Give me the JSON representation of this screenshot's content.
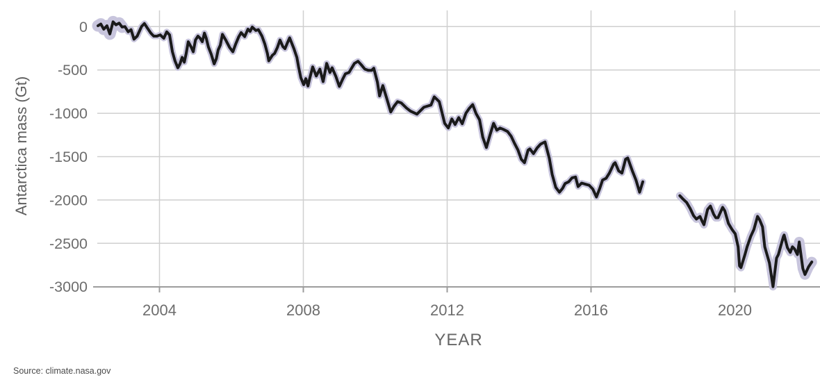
{
  "page": {
    "background": "#ffffff"
  },
  "source_note": "Source: climate.nasa.gov",
  "chart_data": {
    "type": "line",
    "title": "",
    "xlabel": "YEAR",
    "ylabel": "Antarctica mass (Gt)",
    "xlim": [
      2002.1,
      2022.3
    ],
    "ylim": [
      -3050,
      120
    ],
    "grid": true,
    "legend": "none",
    "x_ticks": {
      "values": [
        2004,
        2008,
        2012,
        2016,
        2020
      ],
      "labels": [
        "2004",
        "2008",
        "2012",
        "2016",
        "2020"
      ]
    },
    "y_ticks": {
      "values": [
        0,
        -500,
        -1000,
        -1500,
        -2000,
        -2500,
        -3000
      ],
      "labels": [
        "0",
        "-500",
        "-1000",
        "-1500",
        "-2000",
        "-2500",
        "-3000"
      ]
    },
    "line_color": "#1a1a1a",
    "band_color": "#c8c5dd",
    "grid_color": "#cfcfcf",
    "axis_color": "#9c9c9c",
    "tick_label_color": "#6d6d6d",
    "axis_label_color": "#5f5f5f",
    "series": [
      {
        "name": "mass-anomaly-segment-1",
        "points": [
          [
            2002.29,
            10
          ],
          [
            2002.37,
            30
          ],
          [
            2002.45,
            -30
          ],
          [
            2002.54,
            10
          ],
          [
            2002.62,
            -85
          ],
          [
            2002.71,
            55
          ],
          [
            2002.79,
            20
          ],
          [
            2002.88,
            40
          ],
          [
            2002.96,
            -5
          ],
          [
            2003.04,
            0
          ],
          [
            2003.13,
            -60
          ],
          [
            2003.21,
            -35
          ],
          [
            2003.29,
            -145
          ],
          [
            2003.38,
            -110
          ],
          [
            2003.5,
            0
          ],
          [
            2003.58,
            35
          ],
          [
            2003.67,
            -20
          ],
          [
            2003.76,
            -75
          ],
          [
            2003.84,
            -110
          ],
          [
            2003.93,
            -110
          ],
          [
            2004.02,
            -95
          ],
          [
            2004.12,
            -135
          ],
          [
            2004.2,
            -60
          ],
          [
            2004.28,
            -95
          ],
          [
            2004.36,
            -290
          ],
          [
            2004.43,
            -395
          ],
          [
            2004.51,
            -475
          ],
          [
            2004.57,
            -430
          ],
          [
            2004.63,
            -355
          ],
          [
            2004.69,
            -410
          ],
          [
            2004.74,
            -315
          ],
          [
            2004.8,
            -175
          ],
          [
            2004.88,
            -235
          ],
          [
            2004.94,
            -290
          ],
          [
            2005.0,
            -155
          ],
          [
            2005.07,
            -110
          ],
          [
            2005.13,
            -135
          ],
          [
            2005.19,
            -175
          ],
          [
            2005.25,
            -75
          ],
          [
            2005.3,
            -135
          ],
          [
            2005.36,
            -235
          ],
          [
            2005.44,
            -320
          ],
          [
            2005.52,
            -430
          ],
          [
            2005.58,
            -370
          ],
          [
            2005.63,
            -270
          ],
          [
            2005.69,
            -215
          ],
          [
            2005.75,
            -90
          ],
          [
            2005.85,
            -160
          ],
          [
            2005.95,
            -240
          ],
          [
            2006.04,
            -290
          ],
          [
            2006.12,
            -200
          ],
          [
            2006.2,
            -120
          ],
          [
            2006.27,
            -70
          ],
          [
            2006.37,
            -115
          ],
          [
            2006.46,
            -30
          ],
          [
            2006.52,
            -55
          ],
          [
            2006.58,
            -5
          ],
          [
            2006.68,
            -45
          ],
          [
            2006.75,
            -35
          ],
          [
            2006.85,
            -110
          ],
          [
            2006.93,
            -200
          ],
          [
            2007.0,
            -310
          ],
          [
            2007.04,
            -395
          ],
          [
            2007.14,
            -330
          ],
          [
            2007.2,
            -310
          ],
          [
            2007.28,
            -240
          ],
          [
            2007.35,
            -155
          ],
          [
            2007.43,
            -230
          ],
          [
            2007.49,
            -255
          ],
          [
            2007.56,
            -185
          ],
          [
            2007.62,
            -130
          ],
          [
            2007.74,
            -255
          ],
          [
            2007.82,
            -355
          ],
          [
            2007.87,
            -470
          ],
          [
            2007.93,
            -590
          ],
          [
            2008.01,
            -670
          ],
          [
            2008.07,
            -600
          ],
          [
            2008.13,
            -685
          ],
          [
            2008.17,
            -610
          ],
          [
            2008.26,
            -465
          ],
          [
            2008.36,
            -570
          ],
          [
            2008.46,
            -490
          ],
          [
            2008.55,
            -635
          ],
          [
            2008.65,
            -425
          ],
          [
            2008.74,
            -530
          ],
          [
            2008.8,
            -475
          ],
          [
            2008.9,
            -570
          ],
          [
            2009.0,
            -690
          ],
          [
            2009.09,
            -610
          ],
          [
            2009.17,
            -545
          ],
          [
            2009.27,
            -530
          ],
          [
            2009.42,
            -425
          ],
          [
            2009.52,
            -400
          ],
          [
            2009.61,
            -440
          ],
          [
            2009.71,
            -490
          ],
          [
            2009.81,
            -505
          ],
          [
            2009.9,
            -505
          ],
          [
            2009.96,
            -480
          ],
          [
            2010.06,
            -640
          ],
          [
            2010.12,
            -800
          ],
          [
            2010.21,
            -680
          ],
          [
            2010.32,
            -830
          ],
          [
            2010.43,
            -985
          ],
          [
            2010.52,
            -920
          ],
          [
            2010.62,
            -865
          ],
          [
            2010.72,
            -880
          ],
          [
            2010.87,
            -940
          ],
          [
            2010.98,
            -975
          ],
          [
            2011.16,
            -1010
          ],
          [
            2011.35,
            -930
          ],
          [
            2011.55,
            -905
          ],
          [
            2011.64,
            -810
          ],
          [
            2011.78,
            -865
          ],
          [
            2011.93,
            -1115
          ],
          [
            2012.03,
            -1170
          ],
          [
            2012.13,
            -1065
          ],
          [
            2012.22,
            -1130
          ],
          [
            2012.32,
            -1050
          ],
          [
            2012.42,
            -1120
          ],
          [
            2012.52,
            -1000
          ],
          [
            2012.61,
            -945
          ],
          [
            2012.71,
            -900
          ],
          [
            2012.8,
            -1000
          ],
          [
            2012.9,
            -1075
          ],
          [
            2012.99,
            -1275
          ],
          [
            2013.09,
            -1395
          ],
          [
            2013.19,
            -1250
          ],
          [
            2013.29,
            -1115
          ],
          [
            2013.38,
            -1195
          ],
          [
            2013.47,
            -1170
          ],
          [
            2013.56,
            -1185
          ],
          [
            2013.68,
            -1210
          ],
          [
            2013.78,
            -1265
          ],
          [
            2013.87,
            -1345
          ],
          [
            2013.97,
            -1425
          ],
          [
            2014.06,
            -1530
          ],
          [
            2014.15,
            -1570
          ],
          [
            2014.25,
            -1425
          ],
          [
            2014.3,
            -1410
          ],
          [
            2014.4,
            -1465
          ],
          [
            2014.5,
            -1400
          ],
          [
            2014.6,
            -1355
          ],
          [
            2014.72,
            -1330
          ],
          [
            2014.84,
            -1520
          ],
          [
            2014.92,
            -1705
          ],
          [
            2015.02,
            -1855
          ],
          [
            2015.12,
            -1910
          ],
          [
            2015.21,
            -1865
          ],
          [
            2015.28,
            -1810
          ],
          [
            2015.38,
            -1790
          ],
          [
            2015.47,
            -1745
          ],
          [
            2015.57,
            -1735
          ],
          [
            2015.64,
            -1845
          ],
          [
            2015.74,
            -1805
          ],
          [
            2015.86,
            -1820
          ],
          [
            2015.95,
            -1830
          ],
          [
            2016.05,
            -1875
          ],
          [
            2016.15,
            -1965
          ],
          [
            2016.24,
            -1870
          ],
          [
            2016.32,
            -1770
          ],
          [
            2016.42,
            -1750
          ],
          [
            2016.51,
            -1690
          ],
          [
            2016.63,
            -1585
          ],
          [
            2016.67,
            -1570
          ],
          [
            2016.77,
            -1665
          ],
          [
            2016.86,
            -1690
          ],
          [
            2016.96,
            -1530
          ],
          [
            2017.02,
            -1515
          ],
          [
            2017.15,
            -1665
          ],
          [
            2017.25,
            -1770
          ],
          [
            2017.35,
            -1910
          ],
          [
            2017.44,
            -1790
          ]
        ]
      },
      {
        "name": "mass-anomaly-segment-2",
        "points": [
          [
            2018.47,
            -1950
          ],
          [
            2018.56,
            -1990
          ],
          [
            2018.66,
            -2030
          ],
          [
            2018.76,
            -2100
          ],
          [
            2018.85,
            -2180
          ],
          [
            2018.93,
            -2220
          ],
          [
            2019.03,
            -2190
          ],
          [
            2019.09,
            -2245
          ],
          [
            2019.14,
            -2285
          ],
          [
            2019.24,
            -2110
          ],
          [
            2019.28,
            -2090
          ],
          [
            2019.32,
            -2070
          ],
          [
            2019.41,
            -2165
          ],
          [
            2019.47,
            -2205
          ],
          [
            2019.53,
            -2205
          ],
          [
            2019.59,
            -2150
          ],
          [
            2019.66,
            -2085
          ],
          [
            2019.72,
            -2125
          ],
          [
            2019.82,
            -2270
          ],
          [
            2019.92,
            -2340
          ],
          [
            2020.01,
            -2390
          ],
          [
            2020.09,
            -2540
          ],
          [
            2020.13,
            -2760
          ],
          [
            2020.17,
            -2780
          ],
          [
            2020.28,
            -2630
          ],
          [
            2020.34,
            -2540
          ],
          [
            2020.44,
            -2420
          ],
          [
            2020.53,
            -2340
          ],
          [
            2020.63,
            -2190
          ],
          [
            2020.69,
            -2230
          ],
          [
            2020.77,
            -2310
          ],
          [
            2020.83,
            -2540
          ],
          [
            2020.96,
            -2725
          ],
          [
            2021.06,
            -3000
          ],
          [
            2021.16,
            -2670
          ],
          [
            2021.21,
            -2630
          ],
          [
            2021.35,
            -2420
          ],
          [
            2021.37,
            -2405
          ],
          [
            2021.46,
            -2550
          ],
          [
            2021.54,
            -2605
          ],
          [
            2021.6,
            -2540
          ],
          [
            2021.66,
            -2565
          ],
          [
            2021.74,
            -2630
          ],
          [
            2021.79,
            -2485
          ],
          [
            2021.89,
            -2790
          ],
          [
            2021.95,
            -2860
          ],
          [
            2022.05,
            -2770
          ],
          [
            2022.14,
            -2715
          ]
        ]
      }
    ]
  }
}
